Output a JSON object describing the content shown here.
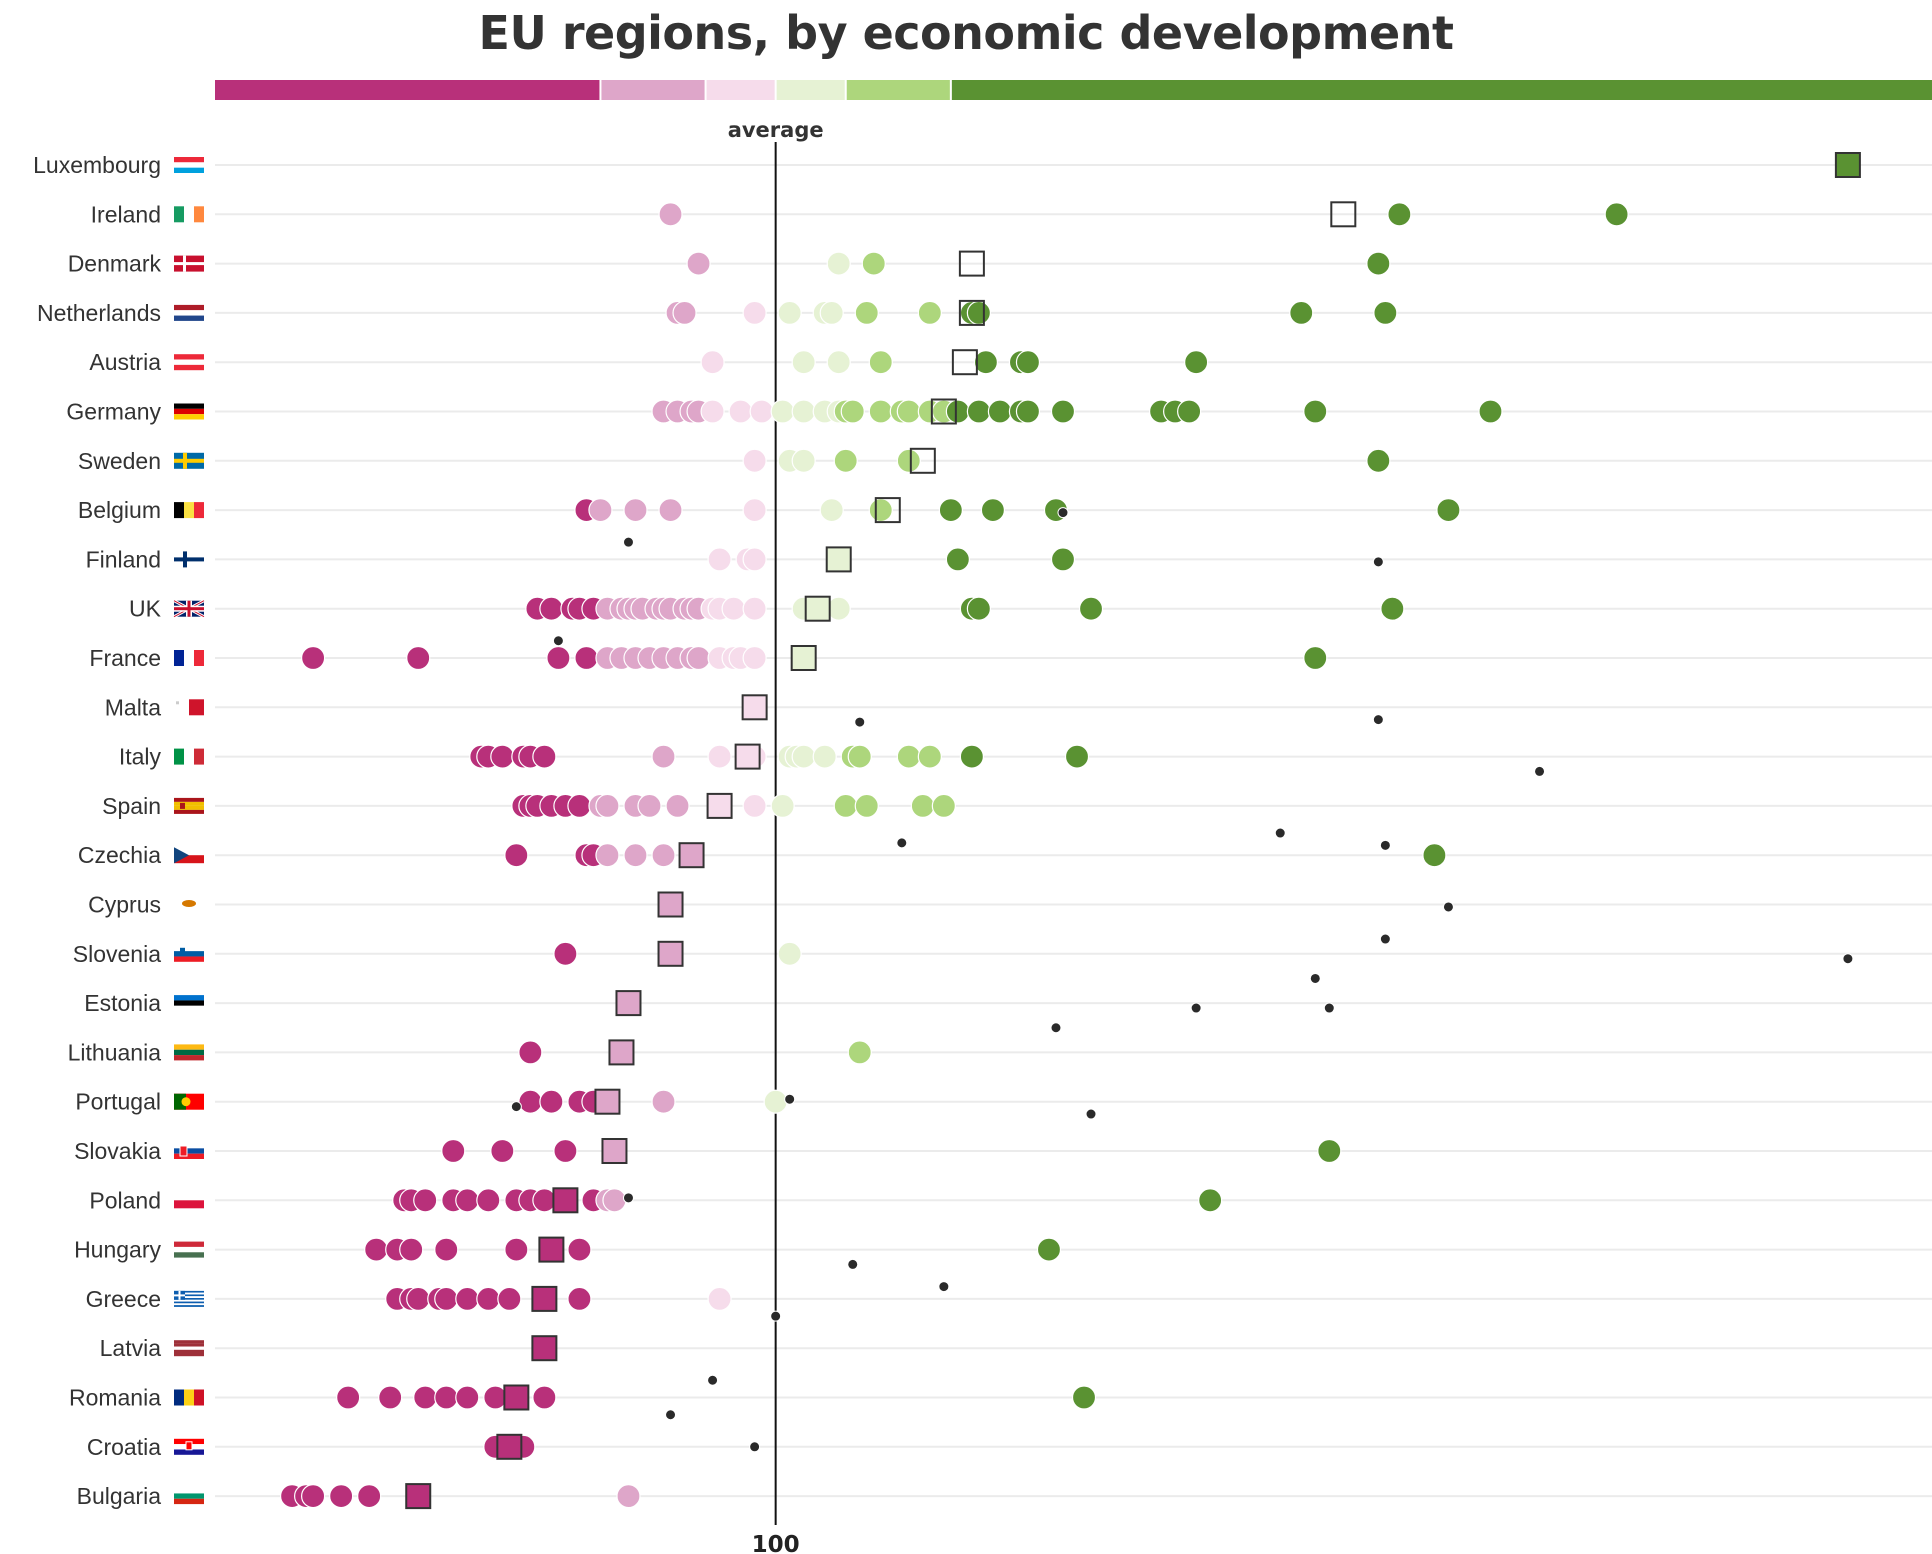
{
  "title": "EU regions, by economic development",
  "chart_data": {
    "type": "scatter",
    "title": "EU regions, by economic development",
    "xlabel": "",
    "ylabel": "",
    "xlim": [
      20,
      265
    ],
    "reference_line": {
      "label": "average",
      "value": 100
    },
    "ticks": [
      100
    ],
    "tick_labels": [
      "100"
    ],
    "grid": true,
    "legend": "none",
    "color_scale": [
      {
        "from": 20,
        "to": 75,
        "color": "#b8307a"
      },
      {
        "from": 75,
        "to": 90,
        "color": "#dea6c9"
      },
      {
        "from": 90,
        "to": 100,
        "color": "#f6dceb"
      },
      {
        "from": 100,
        "to": 110,
        "color": "#e6f2d4"
      },
      {
        "from": 110,
        "to": 125,
        "color": "#add67c"
      },
      {
        "from": 125,
        "to": 265,
        "color": "#5a9232"
      }
    ],
    "countries": [
      {
        "name": "Luxembourg",
        "flag": "luxembourg",
        "average": 253,
        "regions": [
          253
        ]
      },
      {
        "name": "Ireland",
        "flag": "ireland",
        "average": 181,
        "regions": [
          85,
          189,
          220
        ]
      },
      {
        "name": "Denmark",
        "flag": "denmark",
        "average": 128,
        "regions": [
          89,
          109,
          114,
          186
        ]
      },
      {
        "name": "Netherlands",
        "flag": "netherlands",
        "average": 128,
        "regions": [
          86,
          87,
          97,
          102,
          107,
          108,
          113,
          122,
          128,
          129,
          175,
          187
        ]
      },
      {
        "name": "Austria",
        "flag": "austria",
        "average": 127,
        "regions": [
          91,
          104,
          109,
          115,
          130,
          135,
          136,
          160
        ]
      },
      {
        "name": "Germany",
        "flag": "germany",
        "average": 124,
        "regions": [
          84,
          86,
          88,
          89,
          91,
          95,
          98,
          101,
          104,
          107,
          109,
          110,
          111,
          115,
          118,
          119,
          122,
          124,
          126,
          129,
          132,
          135,
          136,
          141,
          155,
          157,
          159,
          177,
          202
        ]
      },
      {
        "name": "Sweden",
        "flag": "sweden",
        "average": 121,
        "regions": [
          97,
          102,
          104,
          110,
          119,
          186
        ]
      },
      {
        "name": "Belgium",
        "flag": "belgium",
        "average": 116,
        "regions": [
          73,
          75,
          80,
          85,
          97,
          108,
          115,
          125,
          131,
          140,
          196
        ]
      },
      {
        "name": "Finland",
        "flag": "finland",
        "average": 109,
        "regions": [
          92,
          96,
          97,
          126,
          141
        ]
      },
      {
        "name": "UK",
        "flag": "uk",
        "average": 106,
        "regions": [
          66,
          68,
          71,
          72,
          74,
          76,
          78,
          79,
          80,
          81,
          83,
          84,
          85,
          87,
          88,
          89,
          91,
          92,
          94,
          97,
          104,
          107,
          109,
          128,
          129,
          145,
          188
        ]
      },
      {
        "name": "France",
        "flag": "france",
        "average": 104,
        "regions": [
          34,
          49,
          69,
          73,
          76,
          78,
          80,
          82,
          84,
          86,
          88,
          89,
          92,
          94,
          95,
          97,
          104,
          177
        ]
      },
      {
        "name": "Malta",
        "flag": "malta",
        "average": 97,
        "regions": [
          97
        ]
      },
      {
        "name": "Italy",
        "flag": "italy",
        "average": 96,
        "regions": [
          58,
          59,
          61,
          64,
          65,
          67,
          84,
          92,
          97,
          102,
          103,
          104,
          107,
          111,
          112,
          119,
          122,
          128,
          143
        ]
      },
      {
        "name": "Spain",
        "flag": "spain",
        "average": 92,
        "regions": [
          64,
          65,
          66,
          68,
          70,
          72,
          75,
          76,
          80,
          82,
          86,
          92,
          97,
          101,
          110,
          113,
          121,
          124
        ]
      },
      {
        "name": "Czechia",
        "flag": "czechia",
        "average": 88,
        "regions": [
          63,
          73,
          74,
          76,
          80,
          84,
          88,
          194
        ]
      },
      {
        "name": "Cyprus",
        "flag": "cyprus",
        "average": 85,
        "regions": [
          85
        ]
      },
      {
        "name": "Slovenia",
        "flag": "slovenia",
        "average": 85,
        "regions": [
          70,
          85,
          102
        ]
      },
      {
        "name": "Estonia",
        "flag": "estonia",
        "average": 79,
        "regions": [
          79
        ]
      },
      {
        "name": "Lithuania",
        "flag": "lithuania",
        "average": 78,
        "regions": [
          65,
          78,
          112
        ]
      },
      {
        "name": "Portugal",
        "flag": "portugal",
        "average": 76,
        "regions": [
          65,
          68,
          72,
          74,
          76,
          84,
          100
        ]
      },
      {
        "name": "Slovakia",
        "flag": "slovakia",
        "average": 77,
        "regions": [
          54,
          61,
          70,
          77,
          179
        ]
      },
      {
        "name": "Poland",
        "flag": "poland",
        "average": 70,
        "regions": [
          47,
          48,
          50,
          54,
          56,
          59,
          63,
          65,
          67,
          70,
          74,
          76,
          77,
          162
        ]
      },
      {
        "name": "Hungary",
        "flag": "hungary",
        "average": 68,
        "regions": [
          43,
          46,
          48,
          53,
          63,
          68,
          72,
          139
        ]
      },
      {
        "name": "Greece",
        "flag": "greece",
        "average": 67,
        "regions": [
          46,
          48,
          49,
          52,
          53,
          56,
          59,
          62,
          67,
          72,
          92
        ]
      },
      {
        "name": "Latvia",
        "flag": "latvia",
        "average": 67,
        "regions": [
          67
        ]
      },
      {
        "name": "Romania",
        "flag": "romania",
        "average": 63,
        "regions": [
          39,
          45,
          50,
          53,
          56,
          60,
          63,
          67,
          144
        ]
      },
      {
        "name": "Croatia",
        "flag": "croatia",
        "average": 62,
        "regions": [
          60,
          62,
          64
        ]
      },
      {
        "name": "Bulgaria",
        "flag": "bulgaria",
        "average": 49,
        "regions": [
          31,
          33,
          34,
          38,
          42,
          49,
          79
        ]
      }
    ],
    "outliers": [
      {
        "x": 141,
        "row": 7.05
      },
      {
        "x": 79,
        "row": 7.65
      },
      {
        "x": 186,
        "row": 8.05
      },
      {
        "x": 69,
        "row": 9.65
      },
      {
        "x": 112,
        "row": 11.3
      },
      {
        "x": 186,
        "row": 11.25
      },
      {
        "x": 209,
        "row": 12.3
      },
      {
        "x": 172,
        "row": 13.55
      },
      {
        "x": 118,
        "row": 13.75
      },
      {
        "x": 187,
        "row": 13.8
      },
      {
        "x": 196,
        "row": 15.05
      },
      {
        "x": 187,
        "row": 15.7
      },
      {
        "x": 253,
        "row": 16.1
      },
      {
        "x": 177,
        "row": 16.5
      },
      {
        "x": 160,
        "row": 17.1
      },
      {
        "x": 179,
        "row": 17.1
      },
      {
        "x": 140,
        "row": 17.5
      },
      {
        "x": 102,
        "row": 18.95
      },
      {
        "x": 63,
        "row": 19.1
      },
      {
        "x": 145,
        "row": 19.25
      },
      {
        "x": 79,
        "row": 20.95
      },
      {
        "x": 111,
        "row": 22.3
      },
      {
        "x": 124,
        "row": 22.75
      },
      {
        "x": 100,
        "row": 23.35
      },
      {
        "x": 91,
        "row": 24.65
      },
      {
        "x": 85,
        "row": 25.35
      },
      {
        "x": 97,
        "row": 26.0
      }
    ]
  }
}
